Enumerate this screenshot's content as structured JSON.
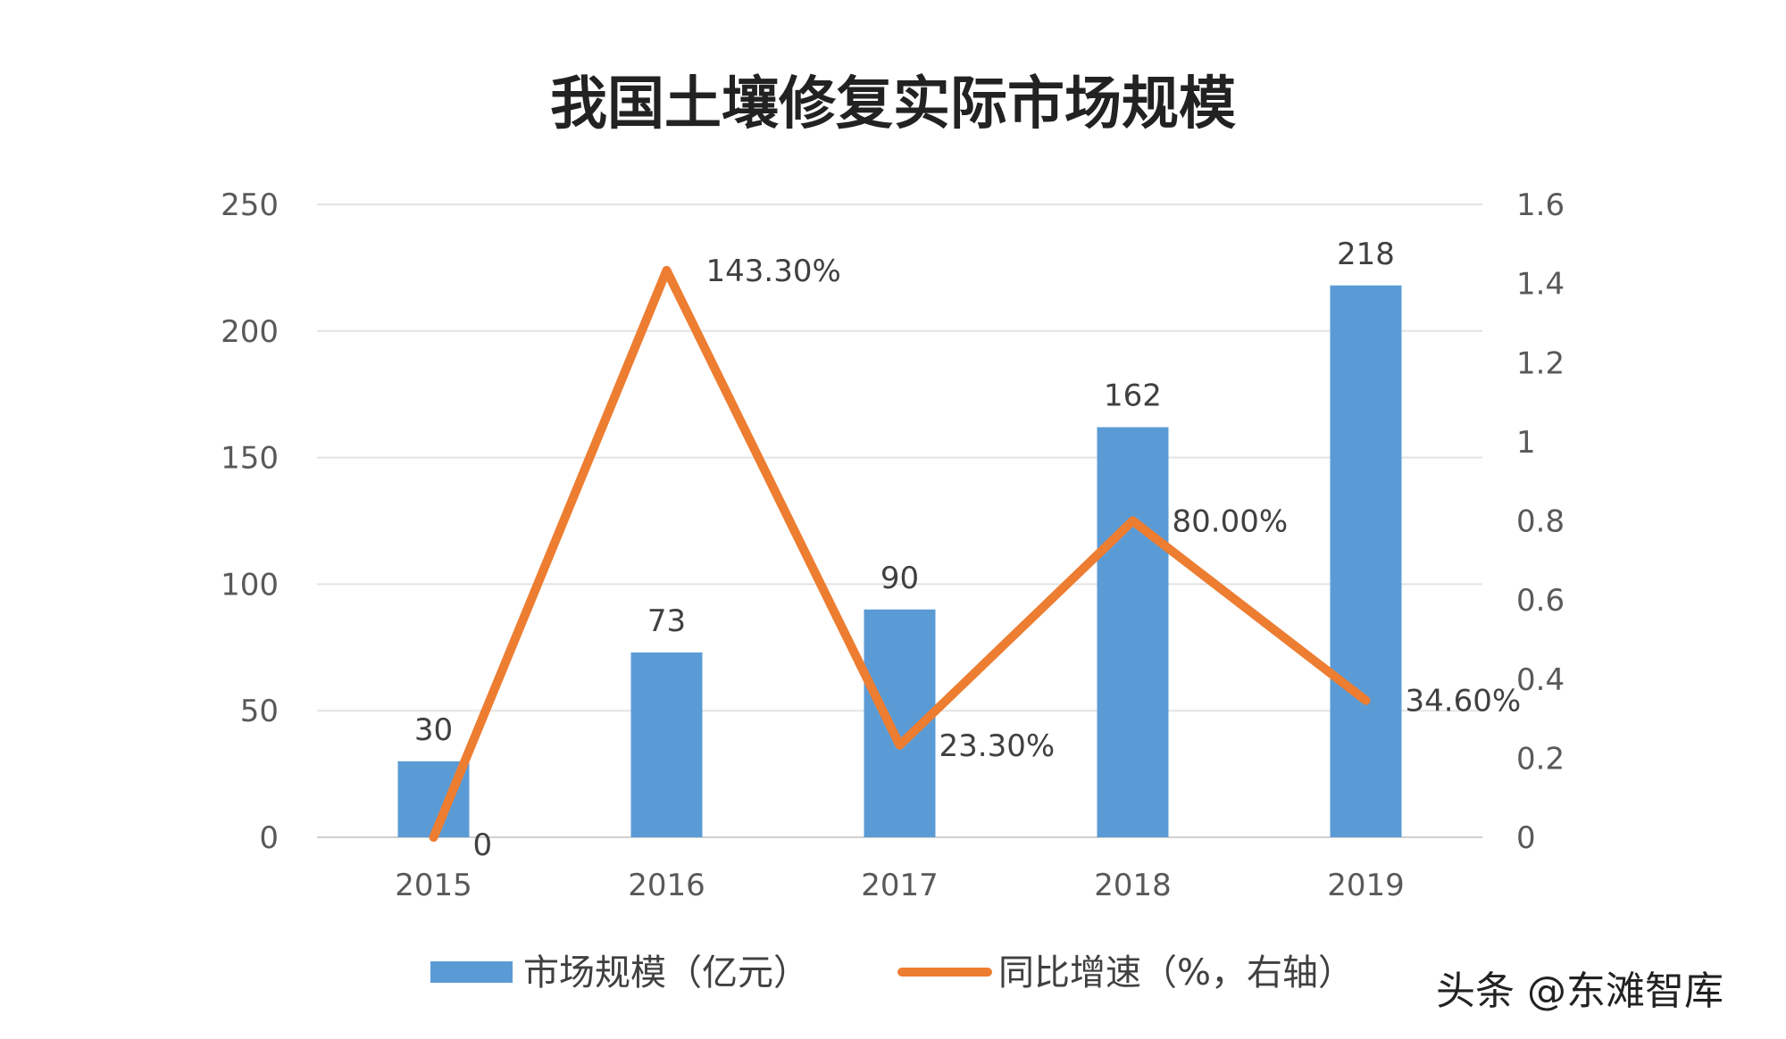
{
  "chart_data": {
    "type": "bar",
    "title": "我国土壤修复实际市场规模",
    "categories": [
      "2015",
      "2016",
      "2017",
      "2018",
      "2019"
    ],
    "series": [
      {
        "name": "市场规模（亿元）",
        "type": "bar",
        "axis": "left",
        "color": "#5b9bd5",
        "values": [
          30,
          73,
          90,
          162,
          218
        ],
        "labels": [
          "30",
          "73",
          "90",
          "162",
          "218"
        ]
      },
      {
        "name": "同比增速（%，右轴）",
        "type": "line",
        "axis": "right",
        "color": "#ed7d31",
        "values": [
          0,
          1.433,
          0.233,
          0.8,
          0.346
        ],
        "labels": [
          "0",
          "143.30%",
          "23.30%",
          "80.00%",
          "34.60%"
        ]
      }
    ],
    "y_left": {
      "ylim": [
        0,
        250
      ],
      "ticks": [
        "0",
        "50",
        "100",
        "150",
        "200",
        "250"
      ],
      "tick_values": [
        0,
        50,
        100,
        150,
        200,
        250
      ]
    },
    "y_right": {
      "ylim": [
        0,
        1.6
      ],
      "ticks": [
        "0",
        "0.2",
        "0.4",
        "0.6",
        "0.8",
        "1",
        "1.2",
        "1.4",
        "1.6"
      ],
      "tick_values": [
        0,
        0.2,
        0.4,
        0.6,
        0.8,
        1,
        1.2,
        1.4,
        1.6
      ]
    },
    "grid": true,
    "legend": "bottom"
  },
  "watermark": "头条 @东滩智库"
}
